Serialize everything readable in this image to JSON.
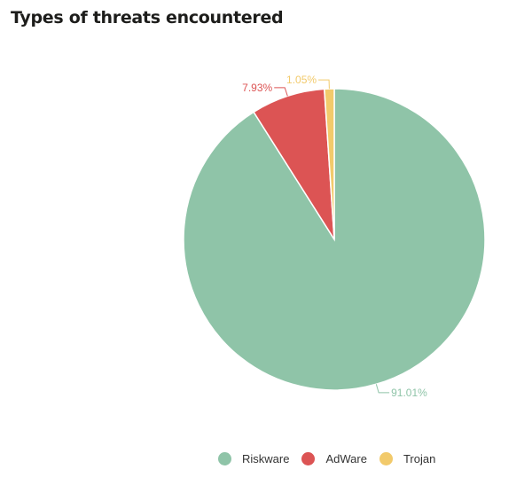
{
  "title": "Types of threats encountered",
  "chart_data": {
    "type": "pie",
    "title": "Types of threats encountered",
    "slices": [
      {
        "name": "Riskware",
        "value": 91.01,
        "label": "91.01%",
        "color": "#8fc4a8"
      },
      {
        "name": "AdWare",
        "value": 7.93,
        "label": "7.93%",
        "color": "#dc5454"
      },
      {
        "name": "Trojan",
        "value": 1.05,
        "label": "1.05%",
        "color": "#f2ca6b"
      }
    ],
    "legend_position": "bottom-right"
  },
  "legend": [
    {
      "label": "Riskware",
      "color": "#8fc4a8"
    },
    {
      "label": "AdWare",
      "color": "#dc5454"
    },
    {
      "label": "Trojan",
      "color": "#f2ca6b"
    }
  ]
}
